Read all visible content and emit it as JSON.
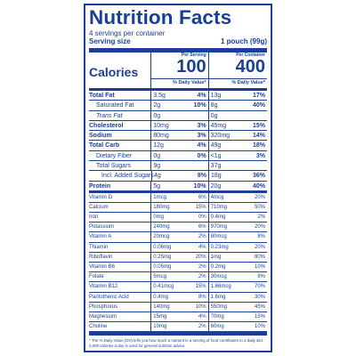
{
  "label": {
    "title": "Nutrition Facts",
    "servings_text": "4 servings per container",
    "serving_size_label": "Serving size",
    "serving_size_value": "1 pouch (99g)",
    "calories_label": "Calories",
    "col1_header": "Per Serving",
    "col2_header": "Per Container",
    "calories_per_serving": "100",
    "calories_per_container": "400",
    "dv_header": "% Daily Value*",
    "nutrients": [
      {
        "name": "Total Fat",
        "s_amt": "3.5g",
        "s_pct": "4%",
        "c_amt": "13g",
        "c_pct": "17%"
      },
      {
        "name": "Saturated Fat",
        "s_amt": "2g",
        "s_pct": "10%",
        "c_amt": "8g",
        "c_pct": "40%"
      },
      {
        "name": "Trans Fat",
        "s_amt": "0g",
        "s_pct": "",
        "c_amt": "0g",
        "c_pct": ""
      },
      {
        "name": "Cholesterol",
        "s_amt": "10mg",
        "s_pct": "3%",
        "c_amt": "45mg",
        "c_pct": "15%"
      },
      {
        "name": "Sodium",
        "s_amt": "80mg",
        "s_pct": "3%",
        "c_amt": "320mg",
        "c_pct": "14%"
      },
      {
        "name": "Total Carb",
        "s_amt": "12g",
        "s_pct": "4%",
        "c_amt": "49g",
        "c_pct": "18%"
      },
      {
        "name": "Dietary Fiber",
        "s_amt": "0g",
        "s_pct": "0%",
        "c_amt": "<1g",
        "c_pct": "3%"
      },
      {
        "name": "Total Sugars",
        "s_amt": "9g",
        "s_pct": "",
        "c_amt": "37g",
        "c_pct": ""
      },
      {
        "name": "Incl. Added Sugars",
        "s_amt": "4g",
        "s_pct": "8%",
        "c_amt": "18g",
        "c_pct": "36%"
      },
      {
        "name": "Protein",
        "s_amt": "5g",
        "s_pct": "10%",
        "c_amt": "20g",
        "c_pct": "40%"
      }
    ],
    "vitamins": [
      {
        "name": "Vitamin D",
        "s_amt": "1mcg",
        "s_pct": "6%",
        "c_amt": "4mcg",
        "c_pct": "20%"
      },
      {
        "name": "Calcium",
        "s_amt": "180mg",
        "s_pct": "15%",
        "c_amt": "710mg",
        "c_pct": "50%"
      },
      {
        "name": "Iron",
        "s_amt": "0mg",
        "s_pct": "0%",
        "c_amt": "0.4mg",
        "c_pct": "2%"
      },
      {
        "name": "Potassium",
        "s_amt": "240mg",
        "s_pct": "6%",
        "c_amt": "970mg",
        "c_pct": "20%"
      },
      {
        "name": "Vitamin A",
        "s_amt": "20mcg",
        "s_pct": "2%",
        "c_amt": "80mcg",
        "c_pct": "8%"
      },
      {
        "name": "Thiamin",
        "s_amt": "0.06mg",
        "s_pct": "4%",
        "c_amt": "0.23mg",
        "c_pct": "20%"
      },
      {
        "name": "Riboflavin",
        "s_amt": "0.25mg",
        "s_pct": "20%",
        "c_amt": "1mg",
        "c_pct": "80%"
      },
      {
        "name": "Vitamin B6",
        "s_amt": "0.05mg",
        "s_pct": "2%",
        "c_amt": "0.2mg",
        "c_pct": "10%"
      },
      {
        "name": "Folate",
        "s_amt": "5mcg",
        "s_pct": "2%",
        "c_amt": "30mcg",
        "c_pct": "8%"
      },
      {
        "name": "Vitamin B12",
        "s_amt": "0.41mcg",
        "s_pct": "15%",
        "c_amt": "1.66mcg",
        "c_pct": "70%"
      },
      {
        "name": "Pantothenic Acid",
        "s_amt": "0.4mg",
        "s_pct": "8%",
        "c_amt": "1.6mg",
        "c_pct": "30%"
      },
      {
        "name": "Phosphorus",
        "s_amt": "140mg",
        "s_pct": "10%",
        "c_amt": "550mg",
        "c_pct": "45%"
      },
      {
        "name": "Magnesium",
        "s_amt": "15mg",
        "s_pct": "4%",
        "c_amt": "70mg",
        "c_pct": "15%"
      },
      {
        "name": "Choline",
        "s_amt": "10mg",
        "s_pct": "2%",
        "c_amt": "60mg",
        "c_pct": "10%"
      }
    ],
    "footnote": "* The % Daily Value (DV) tells you how much a nutrient in a serving of food contributes to a daily diet. 2,000 calories a day is used for general nutrition advice."
  },
  "colors": {
    "ink": "#1b3f95",
    "background": "#ffffff"
  }
}
